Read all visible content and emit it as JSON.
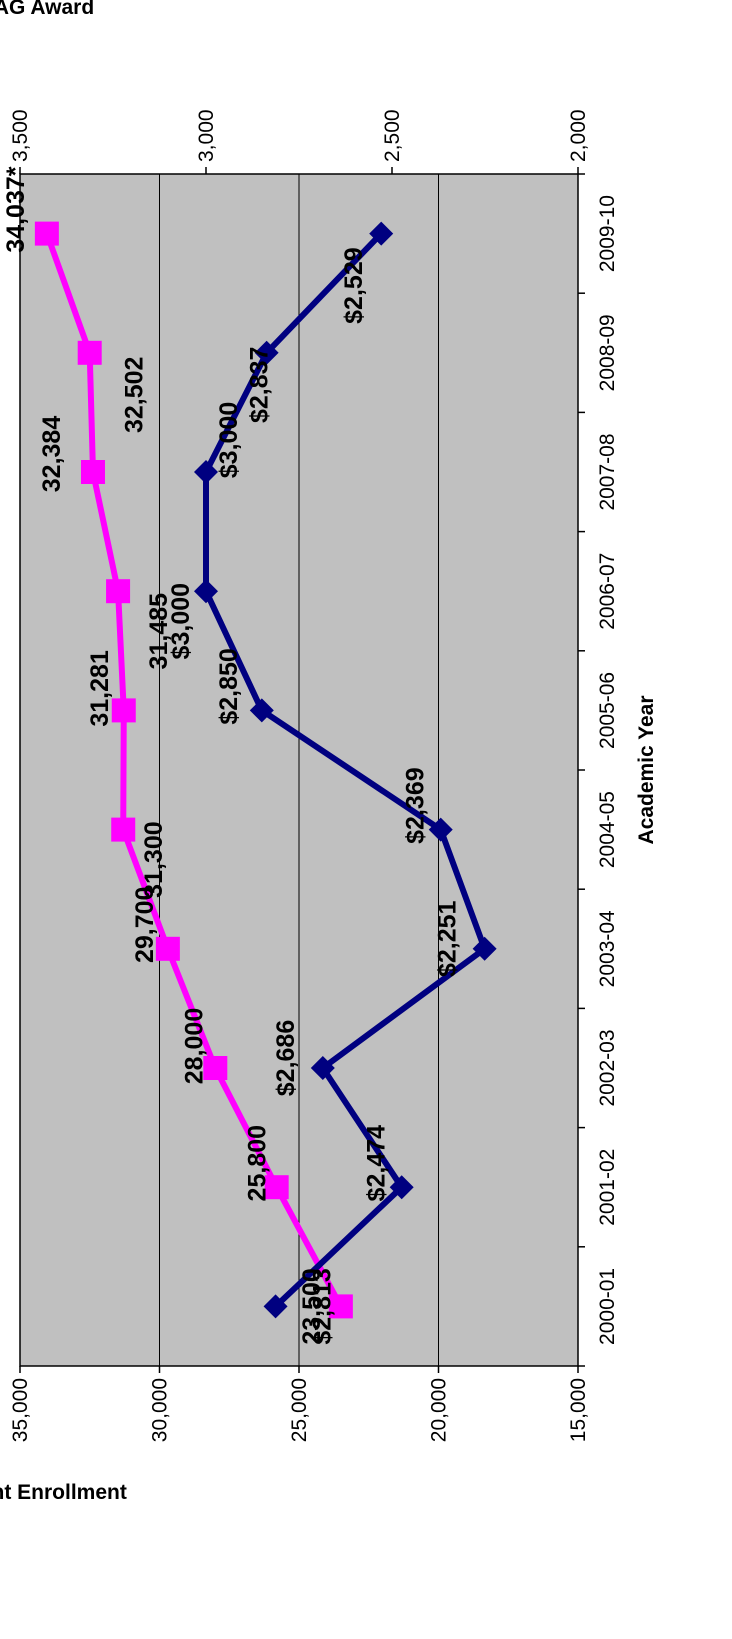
{
  "chart_data": {
    "type": "line",
    "categories": [
      "2000-01",
      "2001-02",
      "2002-03",
      "2003-04",
      "2004-05",
      "2005-06",
      "2006-07",
      "2007-08",
      "2008-09",
      "2009-10"
    ],
    "xlabel": "Academic Year",
    "ylabel_left": "Student Enrollment",
    "ylabel_right": "FRAG Award",
    "ylim_left": [
      15000,
      35000
    ],
    "ylim_right": [
      2000,
      3500
    ],
    "yticks_left": [
      "15,000",
      "20,000",
      "25,000",
      "30,000",
      "35,000"
    ],
    "yticks_right": [
      "2,000",
      "2,500",
      "3,000",
      "3,500"
    ],
    "grid": true,
    "series": [
      {
        "axis": "left",
        "color": "#ff00ff",
        "marker": "square",
        "values": [
          23500,
          25800,
          28000,
          29700,
          31300,
          31281,
          31485,
          32384,
          32502,
          34037
        ],
        "labels": [
          "23,500",
          "25,800",
          "28,000",
          "29,700",
          "31,300",
          "31,281",
          "31,485",
          "32,384",
          "32,502",
          "34,037*"
        ]
      },
      {
        "axis": "right",
        "color": "#000080",
        "marker": "diamond",
        "values": [
          2813,
          2474,
          2686,
          2251,
          2369,
          2850,
          3000,
          3000,
          2837,
          2529
        ],
        "labels": [
          "$2,813",
          "$2,474",
          "$2,686",
          "$2,251",
          "$2,369",
          "$2,850",
          "$3,000",
          "$3,000",
          "$2,837",
          "$2,529"
        ]
      }
    ]
  }
}
